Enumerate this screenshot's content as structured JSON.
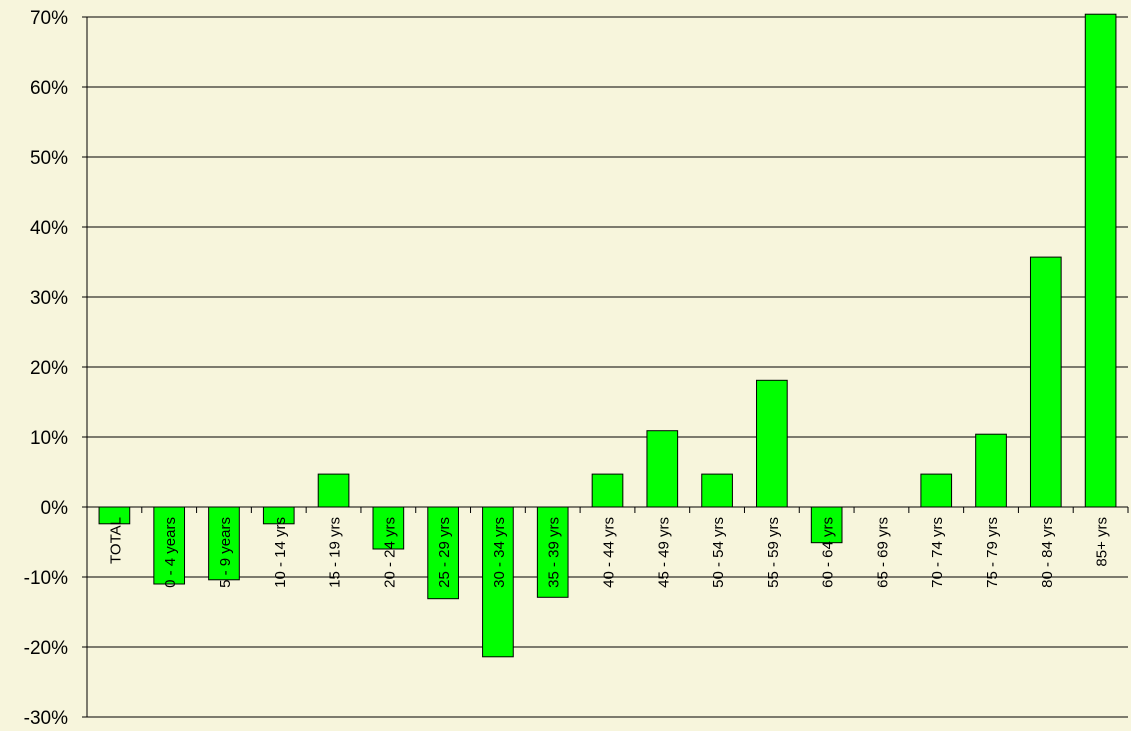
{
  "chart_data": {
    "type": "bar",
    "categories": [
      "TOTAL",
      "0 - 4 years",
      "5 - 9 years",
      "10 - 14 yrs",
      "15 - 19 yrs",
      "20 - 24 yrs",
      "25 - 29 yrs",
      "30 - 34 yrs",
      "35 - 39 yrs",
      "40 - 44 yrs",
      "45 - 49 yrs",
      "50 - 54 yrs",
      "55 - 59 yrs",
      "60 - 64 yrs",
      "65 - 69 yrs",
      "70 - 74 yrs",
      "75 - 79 yrs",
      "80 - 84 yrs",
      "85+ yrs"
    ],
    "values": [
      -2.4,
      -11,
      -10.4,
      -2.4,
      4.7,
      -6,
      -13.1,
      -21.4,
      -12.9,
      4.7,
      10.9,
      4.7,
      18.1,
      -5.1,
      0,
      4.7,
      10.4,
      35.7,
      70.4
    ],
    "color": "#00ff00",
    "ylim": [
      -30,
      70
    ],
    "yticks": [
      {
        "value": -30,
        "label": "-30%"
      },
      {
        "value": -20,
        "label": "-20%"
      },
      {
        "value": -10,
        "label": "-10%"
      },
      {
        "value": 0,
        "label": "0%"
      },
      {
        "value": 10,
        "label": "10%"
      },
      {
        "value": 20,
        "label": "20%"
      },
      {
        "value": 30,
        "label": "30%"
      },
      {
        "value": 40,
        "label": "40%"
      },
      {
        "value": 50,
        "label": "50%"
      },
      {
        "value": 60,
        "label": "60%"
      },
      {
        "value": 70,
        "label": "70%"
      }
    ],
    "grid": true
  }
}
